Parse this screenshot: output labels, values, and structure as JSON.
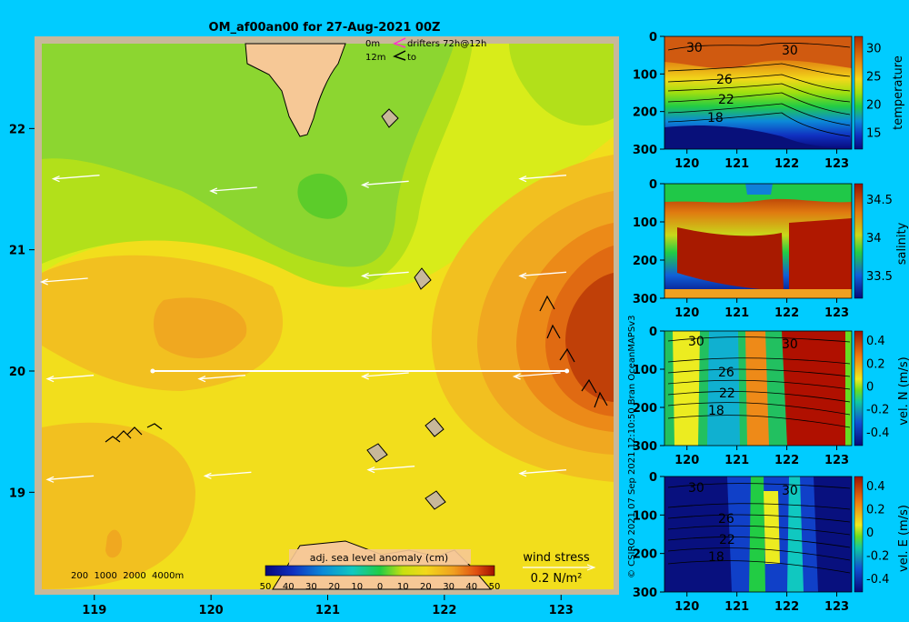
{
  "chart_data": [
    {
      "type": "heatmap",
      "title": "OM_af00an00 for 27-Aug-2021 00Z",
      "x_ticks": [
        "119",
        "120",
        "121",
        "122",
        "123"
      ],
      "y_ticks": [
        "22",
        "21",
        "20",
        "19"
      ],
      "xlim": [
        118.55,
        123.45
      ],
      "ylim": [
        18.2,
        22.7
      ],
      "colorbar": {
        "label": "adj. sea level anomaly (cm)",
        "ticks": [
          "50",
          "40",
          "30",
          "20",
          "10",
          "0",
          "10",
          "20",
          "30",
          "40",
          "50"
        ],
        "range": [
          -50,
          50
        ]
      },
      "legend": {
        "drifter_depth_0": "0m",
        "drifter_depth_12": "12m",
        "drifters_label": "drifters 72h@12h",
        "drifters_to": "to",
        "bathymetry": "200  1000  2000  4000m",
        "wind_stress_label": "wind stress",
        "wind_stress_scale": "0.2 N/m²"
      },
      "section_line": {
        "lat": 20.0,
        "lon_start": 119.5,
        "lon_end": 123.05
      },
      "anomaly_features": [
        {
          "lon": 123.25,
          "lat": 20.45,
          "value": 48
        },
        {
          "lon": 120.1,
          "lat": 20.45,
          "value": 25
        },
        {
          "lon": 119.3,
          "lat": 19.2,
          "value": 22
        },
        {
          "lon": 120.85,
          "lat": 21.5,
          "value": -10
        },
        {
          "lon": 121.6,
          "lat": 22.3,
          "value": -6
        }
      ],
      "wind_vectors": [
        {
          "lon": 118.85,
          "lat": 21.6
        },
        {
          "lon": 120.2,
          "lat": 21.5
        },
        {
          "lon": 121.5,
          "lat": 21.55
        },
        {
          "lon": 122.85,
          "lat": 21.6
        },
        {
          "lon": 118.75,
          "lat": 20.75
        },
        {
          "lon": 121.5,
          "lat": 20.8
        },
        {
          "lon": 122.85,
          "lat": 20.8
        },
        {
          "lon": 118.8,
          "lat": 19.95
        },
        {
          "lon": 120.1,
          "lat": 19.95
        },
        {
          "lon": 121.5,
          "lat": 19.97
        },
        {
          "lon": 122.8,
          "lat": 19.97
        },
        {
          "lon": 118.8,
          "lat": 19.12
        },
        {
          "lon": 120.15,
          "lat": 19.15
        },
        {
          "lon": 121.55,
          "lat": 19.2
        },
        {
          "lon": 122.85,
          "lat": 19.17
        }
      ]
    },
    {
      "type": "heatmap",
      "ylabel": "temperature",
      "x_ticks": [
        "120",
        "121",
        "122",
        "123"
      ],
      "y_ticks": [
        "0",
        "100",
        "200",
        "300"
      ],
      "colorbar_ticks": [
        "30",
        "25",
        "20",
        "15"
      ],
      "contour_labels": [
        "30",
        "30",
        "26",
        "22",
        "18"
      ]
    },
    {
      "type": "heatmap",
      "ylabel": "salinity",
      "x_ticks": [
        "120",
        "121",
        "122",
        "123"
      ],
      "y_ticks": [
        "0",
        "100",
        "200",
        "300"
      ],
      "colorbar_ticks": [
        "34.5",
        "34",
        "33.5"
      ]
    },
    {
      "type": "heatmap",
      "ylabel": "vel. N (m/s)",
      "x_ticks": [
        "120",
        "121",
        "122",
        "123"
      ],
      "y_ticks": [
        "0",
        "100",
        "200",
        "300"
      ],
      "colorbar_ticks": [
        "0.4",
        "0.2",
        "0",
        "-0.2",
        "-0.4"
      ],
      "contour_labels": [
        "30",
        "30",
        "26",
        "22",
        "18"
      ]
    },
    {
      "type": "heatmap",
      "ylabel": "vel. E (m/s)",
      "x_ticks": [
        "120",
        "121",
        "122",
        "123"
      ],
      "y_ticks": [
        "0",
        "100",
        "200",
        "300"
      ],
      "colorbar_ticks": [
        "0.4",
        "0.2",
        "0",
        "-0.2",
        "-0.4"
      ],
      "contour_labels": [
        "30",
        "30",
        "26",
        "22",
        "18"
      ]
    }
  ],
  "credit": "© CSIRO 2021   07 Sep 2021 12:10:50 Bran OceanMAPSv3"
}
